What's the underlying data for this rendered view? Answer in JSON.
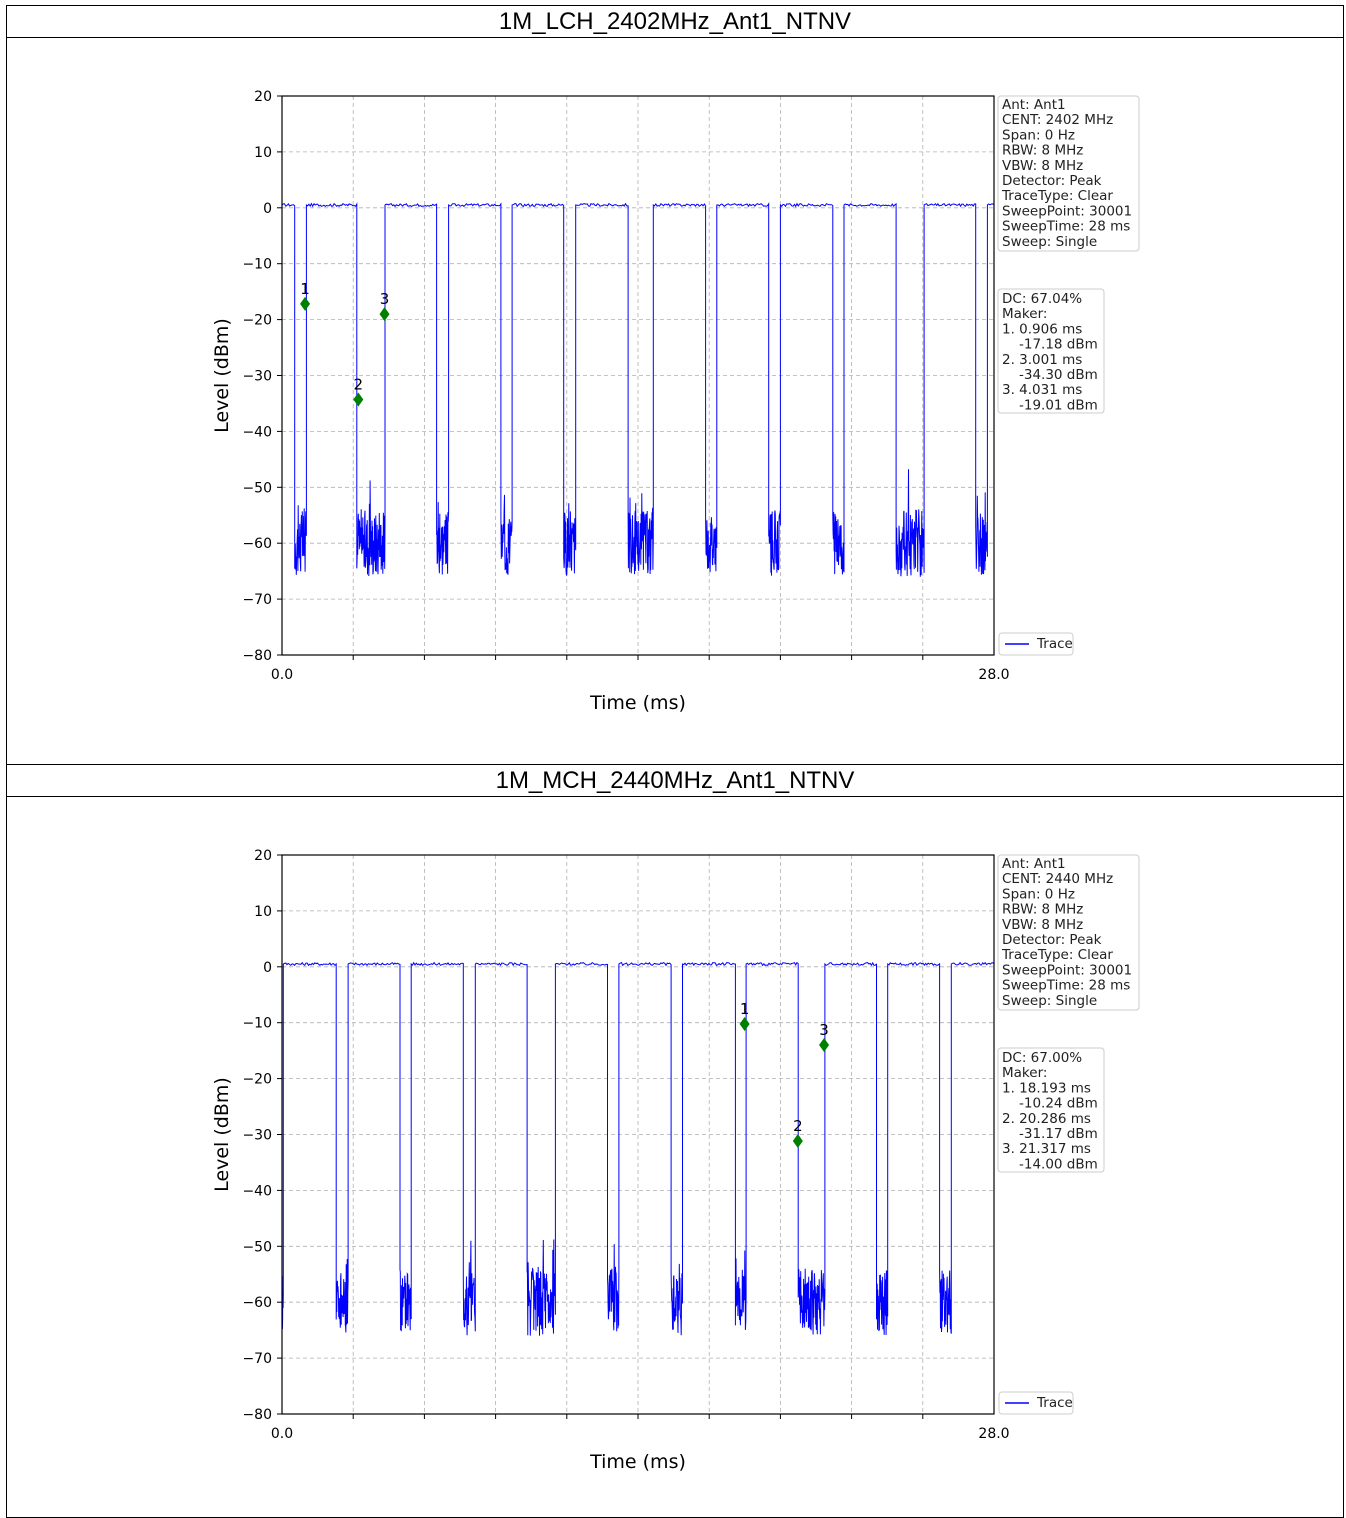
{
  "panels": [
    {
      "title": "1M_LCH_2402MHz_Ant1_NTNV",
      "info_lines": [
        "Ant: Ant1",
        "CENT: 2402 MHz",
        "Span: 0 Hz",
        "RBW: 8 MHz",
        "VBW: 8 MHz",
        "Detector: Peak",
        "TraceType: Clear",
        "SweepPoint: 30001",
        "SweepTime: 28 ms",
        "Sweep: Single"
      ],
      "dc_lines": [
        "DC: 67.04%",
        "Maker:",
        "1. 0.906 ms",
        "    -17.18 dBm",
        "2. 3.001 ms",
        "    -34.30 dBm",
        "3. 4.031 ms",
        "    -19.01 dBm"
      ]
    },
    {
      "title": "1M_MCH_2440MHz_Ant1_NTNV",
      "info_lines": [
        "Ant: Ant1",
        "CENT: 2440 MHz",
        "Span: 0 Hz",
        "RBW: 8 MHz",
        "VBW: 8 MHz",
        "Detector: Peak",
        "TraceType: Clear",
        "SweepPoint: 30001",
        "SweepTime: 28 ms",
        "Sweep: Single"
      ],
      "dc_lines": [
        "DC: 67.00%",
        "Maker:",
        "1. 18.193 ms",
        "    -10.24 dBm",
        "2. 20.286 ms",
        "    -31.17 dBm",
        "3. 21.317 ms",
        "    -14.00 dBm"
      ]
    }
  ],
  "chart_data": [
    {
      "type": "line",
      "xlabel": "Time (ms)",
      "ylabel": "Level (dBm)",
      "xlim": [
        0,
        28
      ],
      "ylim": [
        -80,
        20
      ],
      "x_ticks": [
        "0.0",
        "28.0"
      ],
      "y_ticks": [
        "20",
        "10",
        "0",
        "−10",
        "−20",
        "−30",
        "−40",
        "−50",
        "−60",
        "−70",
        "−80"
      ],
      "grid": true,
      "legend": "Trace",
      "legend_position": "lower-right-outside",
      "trace_color": "#0000ff",
      "marker_color": "#008000",
      "on_level": 0.5,
      "off_level": -60,
      "on_segments": [
        [
          0,
          0.5
        ],
        [
          0.96,
          2.94
        ],
        [
          4.05,
          6.08
        ],
        [
          6.55,
          8.61
        ],
        [
          9.05,
          11.08
        ],
        [
          11.55,
          13.61
        ],
        [
          14.6,
          16.66
        ],
        [
          17.1,
          19.14
        ],
        [
          19.6,
          21.66
        ],
        [
          22.1,
          24.15
        ],
        [
          25.25,
          27.28
        ],
        [
          27.74,
          28
        ]
      ],
      "markers": [
        {
          "label": "1",
          "x": 0.906,
          "y": -17.18
        },
        {
          "label": "2",
          "x": 3.001,
          "y": -34.3
        },
        {
          "label": "3",
          "x": 4.031,
          "y": -19.01
        }
      ]
    },
    {
      "type": "line",
      "xlabel": "Time (ms)",
      "ylabel": "Level (dBm)",
      "xlim": [
        0,
        28
      ],
      "ylim": [
        -80,
        20
      ],
      "x_ticks": [
        "0.0",
        "28.0"
      ],
      "y_ticks": [
        "20",
        "10",
        "0",
        "−10",
        "−20",
        "−30",
        "−40",
        "−50",
        "−60",
        "−70",
        "−80"
      ],
      "grid": true,
      "legend": "Trace",
      "legend_position": "lower-right-outside",
      "trace_color": "#0000ff",
      "marker_color": "#008000",
      "on_level": 0.5,
      "off_level": -60,
      "on_segments": [
        [
          0.05,
          2.13
        ],
        [
          2.6,
          4.64
        ],
        [
          5.08,
          7.13
        ],
        [
          7.6,
          9.64
        ],
        [
          10.75,
          12.8
        ],
        [
          13.25,
          15.3
        ],
        [
          15.75,
          17.83
        ],
        [
          18.25,
          20.3
        ],
        [
          21.35,
          23.38
        ],
        [
          23.82,
          25.86
        ],
        [
          26.32,
          28
        ]
      ],
      "markers": [
        {
          "label": "1",
          "x": 18.193,
          "y": -10.24
        },
        {
          "label": "2",
          "x": 20.286,
          "y": -31.17
        },
        {
          "label": "3",
          "x": 21.317,
          "y": -14.0
        }
      ]
    }
  ]
}
